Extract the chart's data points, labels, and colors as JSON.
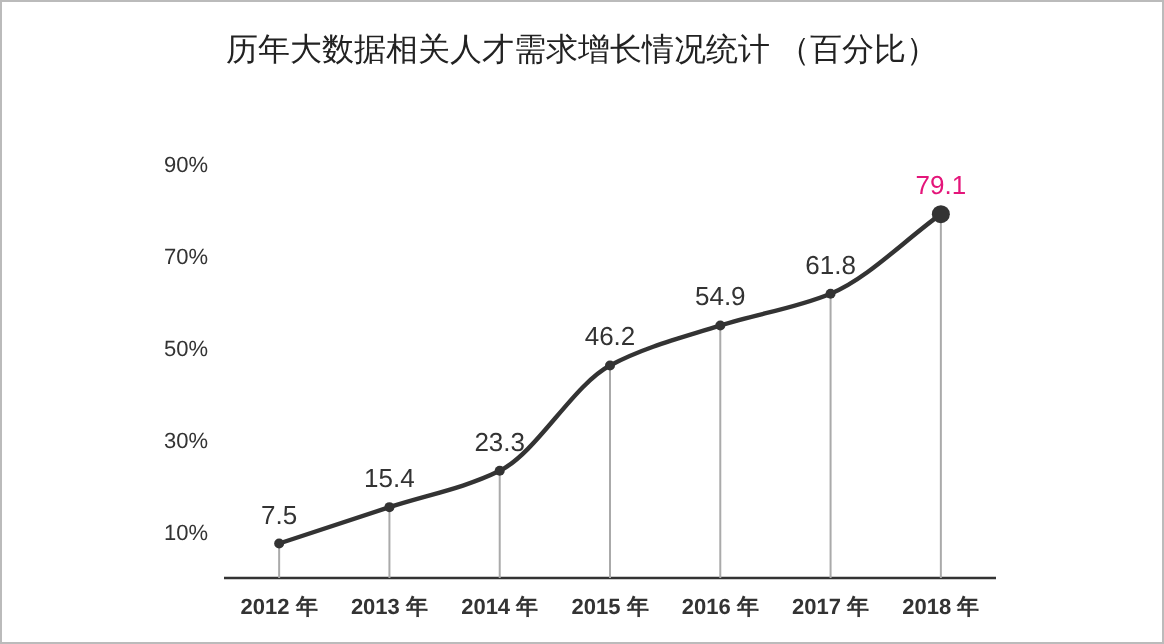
{
  "chart_data": {
    "type": "line",
    "title": "历年大数据相关人才需求增长情况统计 （百分比）",
    "categories": [
      "2012 年",
      "2013 年",
      "2014 年",
      "2015 年",
      "2016 年",
      "2017 年",
      "2018 年"
    ],
    "series": [
      {
        "color": "#333333",
        "values": [
          7.5,
          15.4,
          23.3,
          46.2,
          54.9,
          61.8,
          79.1
        ]
      }
    ],
    "ylim": [
      0,
      90
    ],
    "yticks": [
      {
        "value": 10,
        "label": "10%"
      },
      {
        "value": 30,
        "label": "30%"
      },
      {
        "value": 50,
        "label": "50%"
      },
      {
        "value": 70,
        "label": "70%"
      },
      {
        "value": 90,
        "label": "90%"
      }
    ],
    "data_labels": true,
    "grid": "x",
    "marker": "circle",
    "line_style": "solid"
  }
}
